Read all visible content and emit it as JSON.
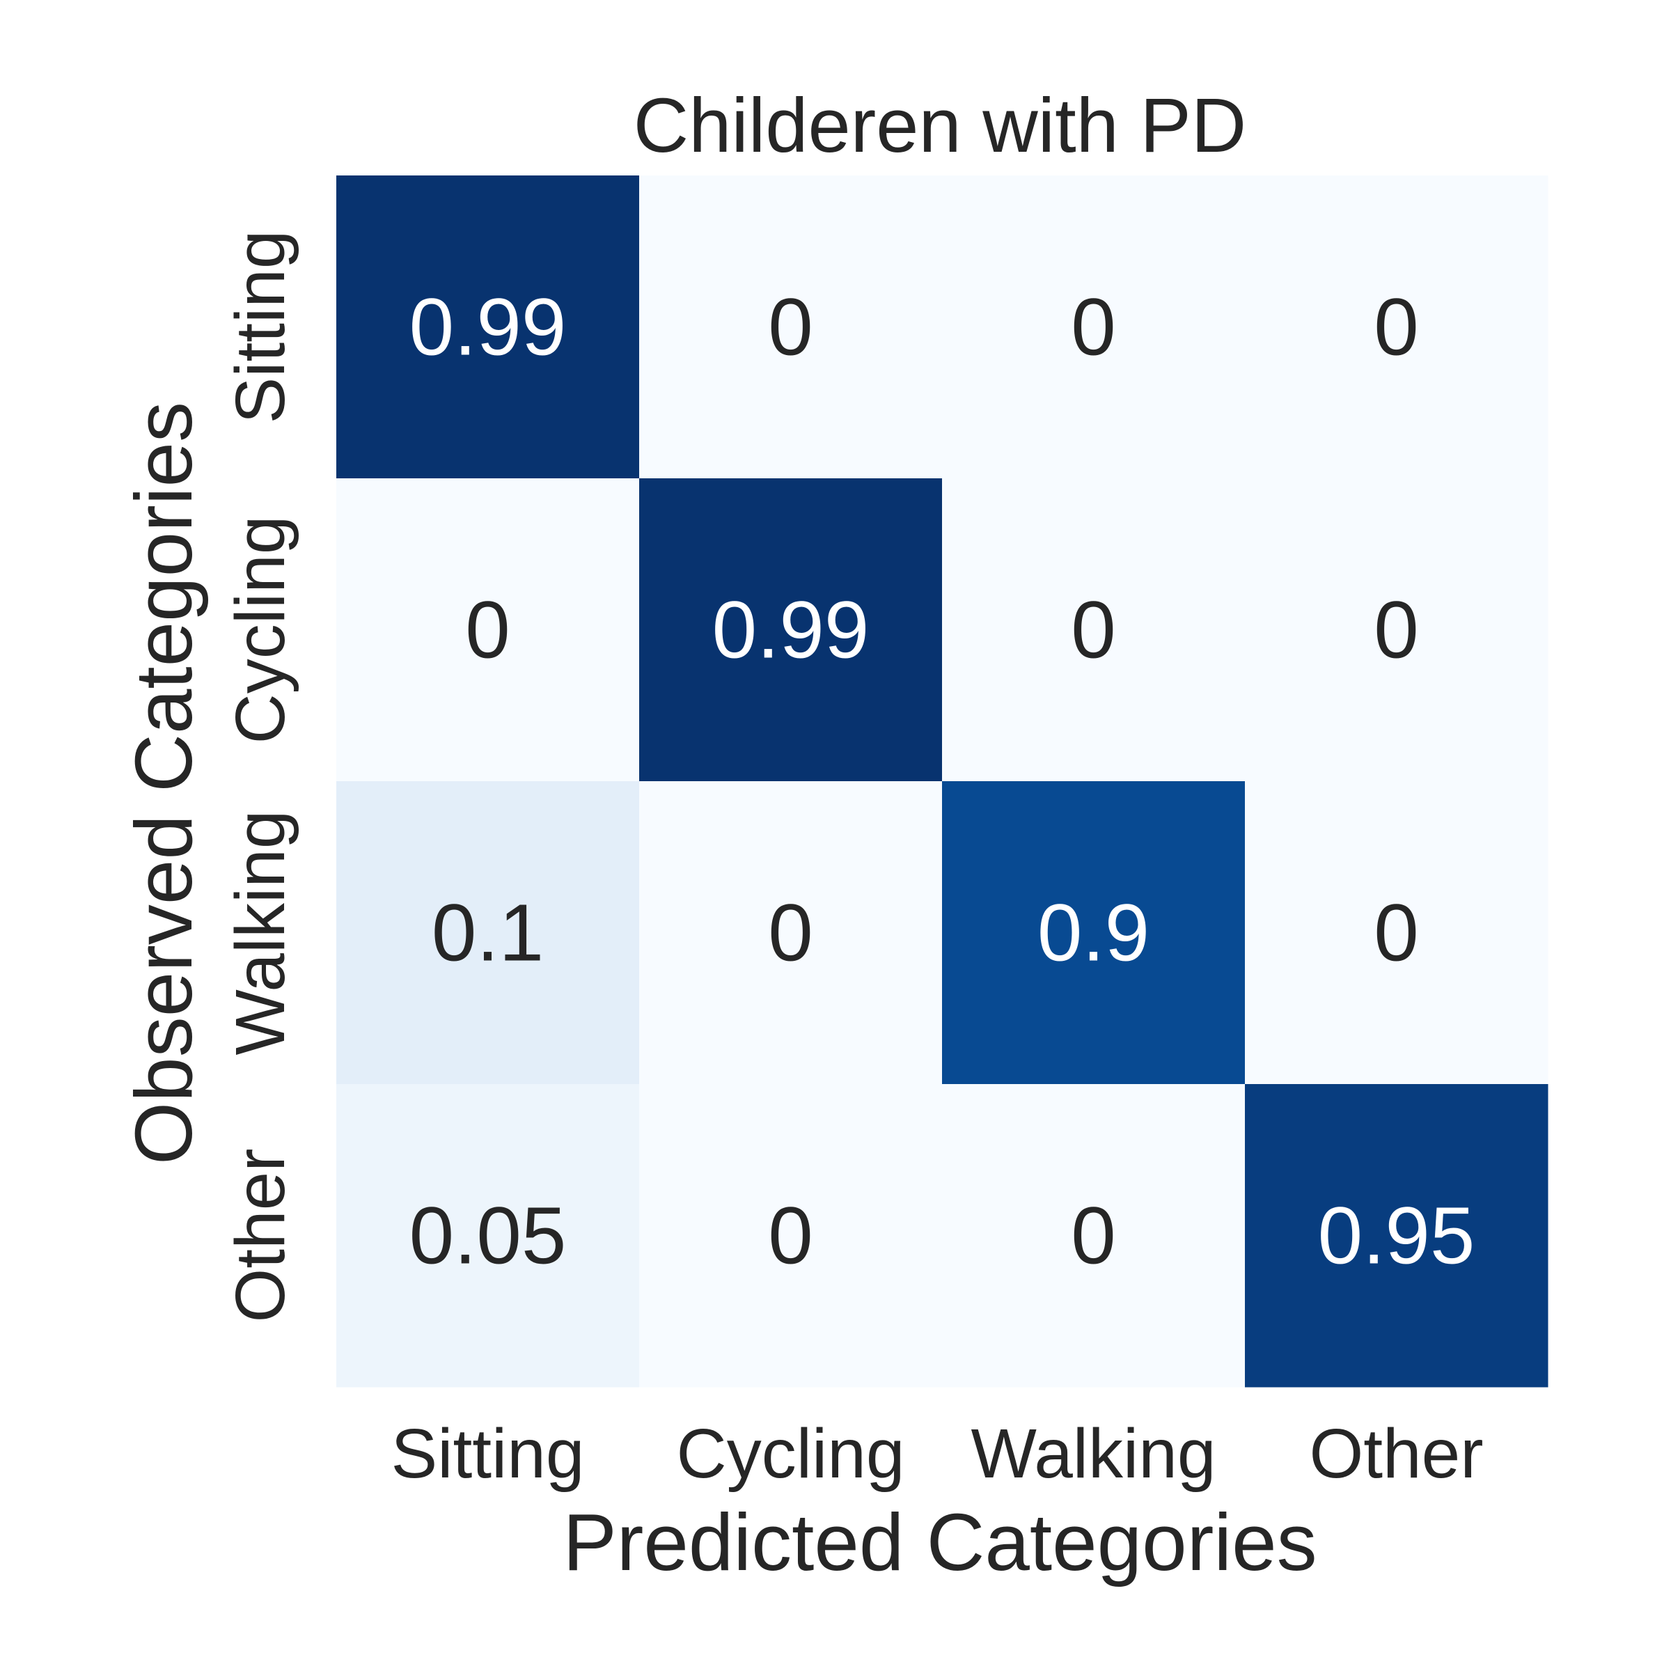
{
  "chart_data": {
    "type": "heatmap",
    "title": "Childeren with PD",
    "xlabel": "Predicted Categories",
    "ylabel": "Observed Categories",
    "x_categories": [
      "Sitting",
      "Cycling",
      "Walking",
      "Other"
    ],
    "y_categories": [
      "Sitting",
      "Cycling",
      "Walking",
      "Other"
    ],
    "values": [
      [
        0.99,
        0,
        0,
        0
      ],
      [
        0,
        0.99,
        0,
        0
      ],
      [
        0.1,
        0,
        0.9,
        0
      ],
      [
        0.05,
        0,
        0,
        0.95
      ]
    ],
    "value_labels": [
      [
        "0.99",
        "0",
        "0",
        "0"
      ],
      [
        "0",
        "0.99",
        "0",
        "0"
      ],
      [
        "0.1",
        "0",
        "0.9",
        "0"
      ],
      [
        "0.05",
        "0",
        "0",
        "0.95"
      ]
    ],
    "colormap": "Blues",
    "vmin": 0,
    "vmax": 1,
    "colorbar": false,
    "grid": false,
    "colors": {
      "low": "#f7fbff",
      "high": "#08306b",
      "text_dark": "#262626",
      "text_light": "#ffffff"
    }
  }
}
